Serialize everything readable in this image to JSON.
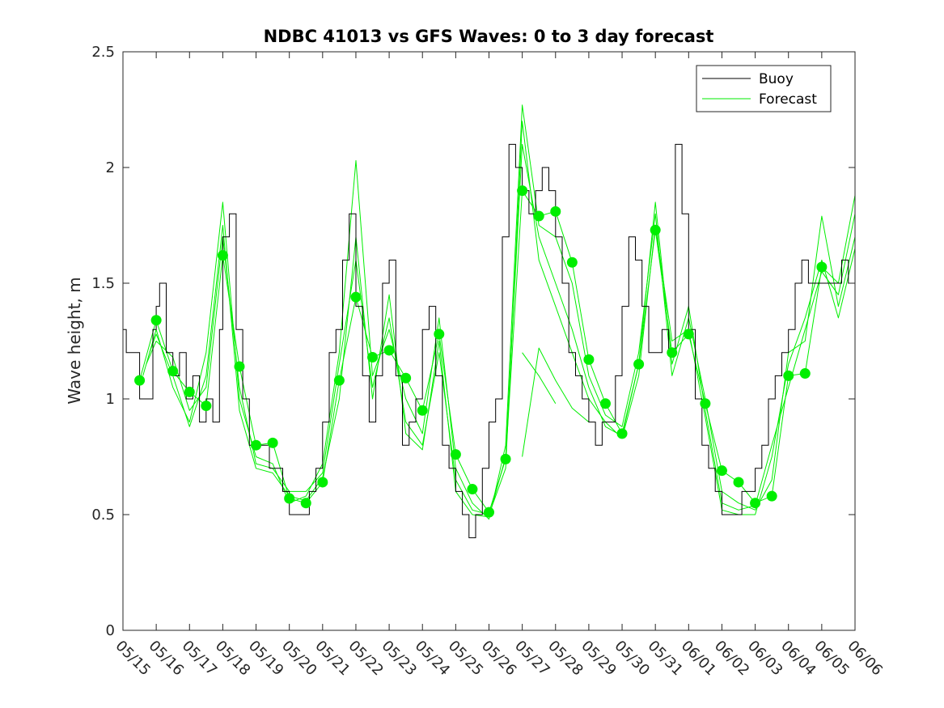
{
  "chart_data": {
    "type": "line",
    "title": "NDBC 41013 vs GFS Waves: 0 to 3 day forecast",
    "xlabel": "",
    "ylabel": "Wave height, m",
    "xlim": [
      0,
      22
    ],
    "ylim": [
      0,
      2.5
    ],
    "yticks": [
      0,
      0.5,
      1,
      1.5,
      2,
      2.5
    ],
    "ytick_labels": [
      "0",
      "0.5",
      "1",
      "1.5",
      "2",
      "2.5"
    ],
    "xtick_labels": [
      "05/15",
      "05/16",
      "05/17",
      "05/18",
      "05/19",
      "05/20",
      "05/21",
      "05/22",
      "05/23",
      "05/24",
      "05/25",
      "05/26",
      "05/27",
      "05/28",
      "05/29",
      "05/30",
      "05/31",
      "06/01",
      "06/02",
      "06/03",
      "06/04",
      "06/05",
      "06/06"
    ],
    "grid": false,
    "legend": {
      "position": "top-right",
      "entries": [
        "Buoy",
        "Forecast"
      ]
    },
    "colors": {
      "buoy": "#000000",
      "forecast": "#00ee00",
      "axes": "#262626"
    },
    "buoy_series": {
      "name": "Buoy",
      "x": [
        0,
        0.1,
        0.3,
        0.5,
        0.7,
        0.9,
        1.0,
        1.1,
        1.3,
        1.5,
        1.7,
        1.9,
        2.1,
        2.3,
        2.5,
        2.7,
        2.9,
        3.0,
        3.2,
        3.4,
        3.6,
        3.8,
        4.0,
        4.2,
        4.4,
        4.6,
        4.8,
        5.0,
        5.2,
        5.4,
        5.6,
        5.8,
        6.0,
        6.2,
        6.4,
        6.6,
        6.8,
        7.0,
        7.2,
        7.4,
        7.6,
        7.8,
        8.0,
        8.2,
        8.4,
        8.6,
        8.8,
        9.0,
        9.2,
        9.4,
        9.6,
        9.8,
        10.0,
        10.2,
        10.4,
        10.6,
        10.8,
        11.0,
        11.2,
        11.4,
        11.6,
        11.8,
        12.0,
        12.2,
        12.4,
        12.6,
        12.8,
        13.0,
        13.2,
        13.4,
        13.6,
        13.8,
        14.0,
        14.2,
        14.4,
        14.6,
        14.8,
        15.0,
        15.2,
        15.4,
        15.6,
        15.8,
        16.0,
        16.2,
        16.4,
        16.6,
        16.8,
        17.0,
        17.2,
        17.4,
        17.6,
        17.8,
        18.0,
        18.2,
        18.4,
        18.6,
        18.8,
        19.0,
        19.2,
        19.4,
        19.6,
        19.8,
        20.0,
        20.2,
        20.4,
        20.6,
        20.8,
        21.0,
        21.2,
        21.4,
        21.6,
        21.8,
        22.0
      ],
      "y": [
        1.3,
        1.2,
        1.2,
        1.0,
        1.0,
        1.3,
        1.4,
        1.5,
        1.2,
        1.1,
        1.2,
        1.0,
        1.1,
        0.9,
        1.0,
        0.9,
        1.3,
        1.7,
        1.8,
        1.3,
        1.0,
        0.8,
        0.8,
        0.8,
        0.7,
        0.7,
        0.6,
        0.5,
        0.5,
        0.5,
        0.6,
        0.7,
        0.9,
        1.2,
        1.3,
        1.6,
        1.8,
        1.4,
        1.1,
        0.9,
        1.1,
        1.5,
        1.6,
        1.1,
        0.8,
        0.9,
        1.0,
        1.3,
        1.4,
        1.1,
        0.8,
        0.7,
        0.6,
        0.5,
        0.4,
        0.5,
        0.7,
        0.9,
        1.0,
        1.7,
        2.1,
        2.0,
        1.9,
        1.8,
        1.9,
        2.0,
        1.9,
        1.7,
        1.5,
        1.2,
        1.1,
        1.0,
        0.9,
        0.8,
        0.9,
        0.9,
        1.1,
        1.4,
        1.7,
        1.6,
        1.4,
        1.2,
        1.2,
        1.3,
        1.2,
        2.1,
        1.8,
        1.3,
        1.0,
        0.8,
        0.7,
        0.6,
        0.5,
        0.5,
        0.5,
        0.6,
        0.6,
        0.7,
        0.8,
        1.0,
        1.1,
        1.2,
        1.3,
        1.5,
        1.6,
        1.5,
        1.5,
        1.5,
        1.5,
        1.5,
        1.6,
        1.5,
        1.5
      ]
    },
    "forecast_markers": {
      "name": "Forecast",
      "x": [
        0.5,
        1.0,
        1.5,
        2.0,
        2.5,
        3.0,
        3.5,
        4.0,
        4.5,
        5.0,
        5.5,
        6.0,
        6.5,
        7.0,
        7.5,
        8.0,
        8.5,
        9.0,
        9.5,
        10.0,
        10.5,
        11.0,
        11.5,
        12.0,
        12.5,
        13.0,
        13.5,
        14.0,
        14.5,
        15.0,
        15.5,
        16.0,
        16.5,
        17.0,
        17.5,
        18.0,
        18.5,
        19.0,
        19.5,
        20.0,
        20.5,
        21.0
      ],
      "y": [
        1.08,
        1.34,
        1.12,
        1.03,
        0.97,
        1.62,
        1.14,
        0.8,
        0.81,
        0.57,
        0.55,
        0.64,
        1.08,
        1.44,
        1.18,
        1.21,
        1.09,
        0.95,
        1.28,
        0.76,
        0.61,
        0.51,
        0.74,
        1.9,
        1.79,
        1.81,
        1.59,
        1.17,
        0.98,
        0.85,
        1.15,
        1.73,
        1.2,
        1.28,
        0.98,
        0.69,
        0.64,
        0.55,
        0.58,
        1.1,
        1.11,
        1.57
      ]
    },
    "forecast_runs": [
      {
        "x": [
          0.5,
          1.0,
          1.5,
          2.0,
          2.5,
          3.0,
          3.5,
          4.0,
          4.5,
          5.0,
          5.5,
          6.0,
          6.5,
          7.0,
          7.5,
          8.0,
          8.5,
          9.0,
          9.5,
          10.0,
          10.5,
          11.0,
          11.5,
          12.0,
          12.5,
          13.0,
          13.5,
          14.0,
          14.5,
          15.0,
          15.5,
          16.0,
          16.5,
          17.0,
          17.5,
          18.0,
          18.5,
          19.0,
          19.5,
          20.0,
          20.5,
          21.0,
          21.5,
          22.0
        ],
        "y": [
          1.08,
          1.34,
          1.12,
          1.03,
          0.97,
          1.62,
          1.14,
          0.8,
          0.81,
          0.57,
          0.55,
          0.64,
          1.08,
          1.44,
          1.18,
          1.21,
          1.09,
          0.95,
          1.28,
          0.76,
          0.61,
          0.51,
          0.74,
          1.9,
          1.79,
          1.81,
          1.59,
          1.17,
          0.98,
          0.85,
          1.15,
          1.73,
          1.2,
          1.28,
          0.98,
          0.69,
          0.64,
          0.55,
          0.58,
          1.1,
          1.11,
          1.57,
          1.5,
          1.88
        ]
      },
      {
        "x": [
          0.6,
          1.0,
          1.5,
          2.0,
          2.5,
          3.0,
          3.5,
          4.0,
          4.5,
          5.0,
          5.5,
          6.0,
          6.5,
          7.0,
          7.5,
          8.0,
          8.5,
          9.0,
          9.5,
          10.0,
          10.5,
          11.0,
          11.5,
          12.0,
          12.5,
          13.0,
          13.5,
          14.0,
          14.5,
          15.0,
          15.5,
          16.0,
          16.5,
          17.0,
          17.5,
          18.0,
          18.5,
          19.0,
          19.5,
          20.0,
          20.5,
          21.0,
          21.5,
          22.0
        ],
        "y": [
          1.1,
          1.3,
          1.05,
          0.9,
          1.2,
          1.85,
          1.0,
          0.75,
          0.72,
          0.55,
          0.58,
          0.72,
          1.2,
          2.03,
          1.1,
          1.3,
          1.0,
          0.85,
          1.35,
          0.7,
          0.55,
          0.48,
          0.8,
          2.27,
          1.75,
          1.7,
          1.5,
          1.1,
          0.93,
          0.88,
          1.2,
          1.8,
          1.1,
          1.35,
          1.0,
          0.6,
          0.55,
          0.52,
          0.65,
          1.2,
          1.25,
          1.79,
          1.4,
          1.7
        ]
      },
      {
        "x": [
          0.7,
          1.0,
          1.5,
          2.0,
          2.5,
          3.0,
          3.5,
          4.0,
          4.5,
          5.0,
          5.5,
          6.0,
          6.5,
          7.0,
          7.5,
          8.0,
          8.5,
          9.0,
          9.5,
          10.0,
          10.5,
          11.0,
          11.5,
          12.0,
          12.5,
          13.0,
          13.5,
          14.0,
          14.5,
          15.0,
          15.5,
          16.0,
          16.5,
          17.0,
          17.5,
          18.0,
          18.5,
          19.0,
          19.5,
          20.0,
          20.5,
          21.0,
          21.5,
          22.0
        ],
        "y": [
          1.15,
          1.25,
          1.18,
          0.95,
          1.05,
          1.7,
          1.05,
          0.72,
          0.7,
          0.6,
          0.6,
          0.68,
          1.15,
          1.6,
          1.05,
          1.35,
          0.9,
          0.8,
          1.2,
          0.65,
          0.52,
          0.5,
          0.7,
          2.2,
          1.6,
          1.4,
          1.2,
          1.0,
          0.9,
          0.83,
          1.1,
          1.75,
          1.25,
          1.3,
          0.92,
          0.52,
          0.5,
          0.5,
          0.75,
          1.15,
          1.35,
          1.6,
          1.35,
          1.65
        ]
      },
      {
        "x": [
          0.8,
          1.0,
          1.5,
          2.0,
          2.5,
          3.0,
          3.5,
          4.0,
          4.5,
          5.0,
          5.5,
          6.0,
          6.5,
          7.0,
          7.5,
          8.0,
          8.5,
          9.0,
          9.5,
          10.0,
          10.5,
          11.0,
          11.5,
          12.0,
          12.5,
          13.0,
          13.5,
          14.0,
          14.5,
          15.0,
          15.5,
          16.0,
          16.5,
          17.0,
          17.5,
          18.0,
          18.5,
          19.0,
          19.5,
          20.0,
          20.5,
          21.0,
          21.5,
          22.0
        ],
        "y": [
          1.2,
          1.28,
          1.1,
          0.88,
          1.1,
          1.75,
          0.95,
          0.7,
          0.68,
          0.58,
          0.56,
          0.66,
          1.0,
          1.7,
          1.0,
          1.45,
          0.85,
          0.78,
          1.25,
          0.6,
          0.5,
          0.49,
          0.75,
          2.1,
          1.7,
          1.5,
          1.3,
          1.05,
          0.88,
          0.84,
          1.15,
          1.85,
          1.15,
          1.4,
          0.95,
          0.55,
          0.52,
          0.54,
          0.8,
          1.05,
          1.3,
          1.55,
          1.45,
          1.8
        ]
      },
      {
        "x": [
          12.0,
          12.5,
          13.0,
          13.5,
          14.0
        ],
        "y": [
          0.75,
          1.22,
          1.08,
          0.96,
          0.9
        ]
      },
      {
        "x": [
          12.0,
          12.5,
          13.0
        ],
        "y": [
          1.2,
          1.1,
          0.98
        ]
      }
    ]
  }
}
